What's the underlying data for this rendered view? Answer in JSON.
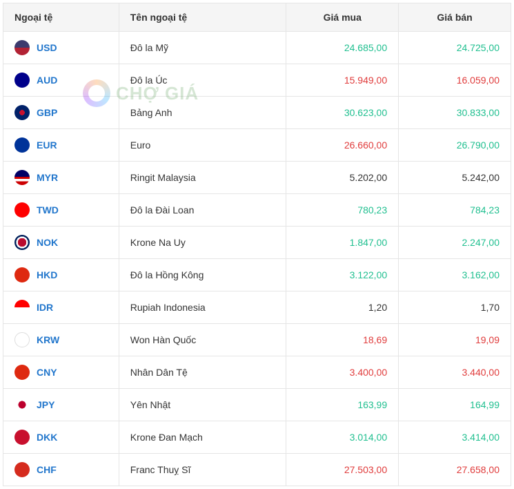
{
  "watermark_text": "CHỢ GIÁ",
  "colors": {
    "up": "#1fbf8f",
    "down": "#e03b3b",
    "neutral": "#333333",
    "code": "#2176cc",
    "header_bg": "#f5f5f5",
    "border": "#e5e5e5"
  },
  "table": {
    "columns": [
      "Ngoại tệ",
      "Tên ngoại tệ",
      "Giá mua",
      "Giá bán"
    ],
    "rows": [
      {
        "code": "USD",
        "name": "Đô la Mỹ",
        "buy": "24.685,00",
        "sell": "24.725,00",
        "buy_c": "green",
        "sell_c": "green"
      },
      {
        "code": "AUD",
        "name": "Đô la Úc",
        "buy": "15.949,00",
        "sell": "16.059,00",
        "buy_c": "red",
        "sell_c": "red"
      },
      {
        "code": "GBP",
        "name": "Bảng Anh",
        "buy": "30.623,00",
        "sell": "30.833,00",
        "buy_c": "green",
        "sell_c": "green"
      },
      {
        "code": "EUR",
        "name": "Euro",
        "buy": "26.660,00",
        "sell": "26.790,00",
        "buy_c": "red",
        "sell_c": "green"
      },
      {
        "code": "MYR",
        "name": "Ringit Malaysia",
        "buy": "5.202,00",
        "sell": "5.242,00",
        "buy_c": "black",
        "sell_c": "black"
      },
      {
        "code": "TWD",
        "name": "Đô la Đài Loan",
        "buy": "780,23",
        "sell": "784,23",
        "buy_c": "green",
        "sell_c": "green"
      },
      {
        "code": "NOK",
        "name": "Krone Na Uy",
        "buy": "1.847,00",
        "sell": "2.247,00",
        "buy_c": "green",
        "sell_c": "green"
      },
      {
        "code": "HKD",
        "name": "Đô la Hồng Kông",
        "buy": "3.122,00",
        "sell": "3.162,00",
        "buy_c": "green",
        "sell_c": "green"
      },
      {
        "code": "IDR",
        "name": "Rupiah Indonesia",
        "buy": "1,20",
        "sell": "1,70",
        "buy_c": "black",
        "sell_c": "black"
      },
      {
        "code": "KRW",
        "name": "Won Hàn Quốc",
        "buy": "18,69",
        "sell": "19,09",
        "buy_c": "red",
        "sell_c": "red"
      },
      {
        "code": "CNY",
        "name": "Nhân Dân Tệ",
        "buy": "3.400,00",
        "sell": "3.440,00",
        "buy_c": "red",
        "sell_c": "red"
      },
      {
        "code": "JPY",
        "name": "Yên Nhật",
        "buy": "163,99",
        "sell": "164,99",
        "buy_c": "green",
        "sell_c": "green"
      },
      {
        "code": "DKK",
        "name": "Krone Đan Mạch",
        "buy": "3.014,00",
        "sell": "3.414,00",
        "buy_c": "green",
        "sell_c": "green"
      },
      {
        "code": "CHF",
        "name": "Franc Thuỵ Sĩ",
        "buy": "27.503,00",
        "sell": "27.658,00",
        "buy_c": "red",
        "sell_c": "red"
      }
    ]
  }
}
